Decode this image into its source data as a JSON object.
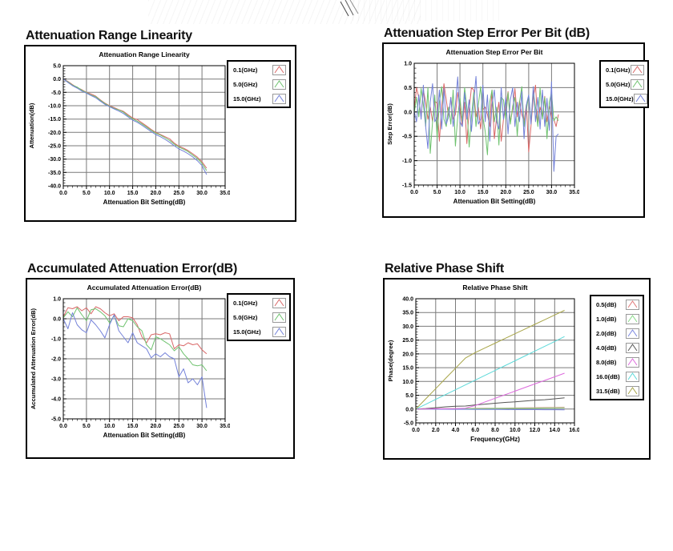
{
  "colors": {
    "grid": "#7a7a7a",
    "axis": "#000000",
    "plot_bg": "#ffffff",
    "frame": "#000000"
  },
  "panels": [
    {
      "header": "Attenuation Range Linearity"
    },
    {
      "header": "Attenuation Step Error Per Bit (dB)"
    },
    {
      "header": "Accumulated Attenuation Error(dB)"
    },
    {
      "header": "Relative Phase Shift"
    }
  ],
  "chart_data": [
    {
      "type": "line",
      "title": "Attenuation Range Linearity",
      "xlabel": "Attenuation Bit Setting(dB)",
      "ylabel": "Attenuation(dB)",
      "xmin": 0,
      "xmax": 35,
      "ymin": -40,
      "ymax": 5,
      "xticks": [
        "0.0",
        "5.0",
        "10.0",
        "15.0",
        "20.0",
        "25.0",
        "30.0",
        "35.0"
      ],
      "yticks": [
        "5.0",
        "0.0",
        "-5.0",
        "-10.0",
        "-15.0",
        "-20.0",
        "-25.0",
        "-30.0",
        "-35.0",
        "-40.0"
      ],
      "grid": true,
      "legend_position": "right",
      "x0": 0,
      "dx": 1,
      "series": [
        {
          "name": "0.1(GHz)",
          "color": "#d96868",
          "y": [
            0,
            -0.9,
            -2.1,
            -3.2,
            -4.0,
            -5.0,
            -5.6,
            -6.4,
            -7.8,
            -9.0,
            -10.0,
            -10.7,
            -11.5,
            -12.1,
            -13.4,
            -14.6,
            -15.2,
            -16.4,
            -17.6,
            -18.9,
            -20.0,
            -20.8,
            -21.6,
            -22.4,
            -24.0,
            -25.2,
            -25.9,
            -26.8,
            -28.0,
            -29.3,
            -31.0,
            -33.4
          ]
        },
        {
          "name": "5.0(GHz)",
          "color": "#6ec26e",
          "y": [
            0,
            -1.1,
            -2.3,
            -3.0,
            -4.2,
            -5.1,
            -6.0,
            -6.6,
            -8.0,
            -9.2,
            -10.2,
            -11.0,
            -11.6,
            -12.4,
            -13.8,
            -14.9,
            -15.8,
            -16.8,
            -18.0,
            -19.2,
            -20.3,
            -21.0,
            -22.0,
            -23.0,
            -24.4,
            -25.5,
            -26.3,
            -27.2,
            -28.5,
            -29.8,
            -31.6,
            -34.3
          ]
        },
        {
          "name": "15.0(GHz)",
          "color": "#7280d8",
          "y": [
            0,
            -1.3,
            -2.5,
            -3.4,
            -4.5,
            -5.3,
            -6.2,
            -7.0,
            -8.3,
            -9.5,
            -10.4,
            -11.2,
            -12.0,
            -12.9,
            -14.2,
            -15.4,
            -16.2,
            -17.3,
            -18.5,
            -19.7,
            -20.8,
            -21.6,
            -22.6,
            -23.7,
            -25.0,
            -26.2,
            -27.0,
            -28.0,
            -29.2,
            -30.6,
            -32.4,
            -35.8
          ]
        }
      ]
    },
    {
      "type": "line",
      "title": "Attenuation Step Error Per Bit",
      "xlabel": "Attenuation Bit Setting(dB)",
      "ylabel": "Step Error(dB)",
      "xmin": 0,
      "xmax": 35,
      "ymin": -1.5,
      "ymax": 1.0,
      "xticks": [
        "0.0",
        "5.0",
        "10.0",
        "15.0",
        "20.0",
        "25.0",
        "30.0",
        "35.0"
      ],
      "yticks": [
        "1.0",
        "0.5",
        "0.0",
        "-0.5",
        "-1.0",
        "-1.5"
      ],
      "grid": true,
      "legend_position": "right",
      "x0": 0,
      "dx": 0.5,
      "series": [
        {
          "name": "0.1(GHz)",
          "color": "#d96868",
          "y": [
            0.05,
            0.5,
            0.3,
            -0.1,
            0.45,
            0.2,
            -0.15,
            0.1,
            -0.2,
            0.22,
            0.18,
            -0.6,
            0.1,
            0.58,
            0.25,
            -0.1,
            0.3,
            -0.15,
            -0.05,
            0.4,
            0.1,
            -0.3,
            0.2,
            -0.65,
            0.05,
            0.5,
            0.45,
            -0.1,
            0.1,
            -0.35,
            0.05,
            0.1,
            -0.05,
            -0.3,
            0.45,
            -0.55,
            -0.1,
            0.2,
            -0.6,
            -0.15,
            0.1,
            0.42,
            -0.2,
            0.05,
            0.48,
            -0.1,
            0.22,
            -0.05,
            -0.2,
            0.15,
            -0.82,
            -0.3,
            0.3,
            0.55,
            -0.25,
            0.1,
            -0.1,
            0.32,
            -0.2,
            0.12,
            -0.1,
            -0.15,
            -0.3,
            -0.05
          ]
        },
        {
          "name": "5.0(GHz)",
          "color": "#6ec26e",
          "y": [
            -0.02,
            0.3,
            -0.1,
            0.48,
            0.15,
            -0.3,
            0.5,
            -0.85,
            -0.2,
            0.35,
            -0.55,
            0.2,
            0.52,
            -0.15,
            -0.3,
            0.1,
            -0.25,
            0.45,
            -0.7,
            -0.1,
            0.3,
            -0.2,
            0.5,
            0.1,
            -0.72,
            -0.1,
            0.4,
            -0.3,
            0.15,
            0.52,
            -0.1,
            -0.4,
            -0.88,
            0.2,
            0.45,
            -0.2,
            0.1,
            -0.68,
            0.3,
            0.25,
            -0.15,
            0.4,
            -0.25,
            0.12,
            0.3,
            -0.5,
            0.2,
            0.52,
            -0.3,
            0.05,
            0.35,
            -0.2,
            0.42,
            0.1,
            -0.3,
            0.5,
            -0.15,
            0.3,
            -0.55,
            0.2,
            0.4,
            -0.18,
            -0.1,
            -0.18
          ]
        },
        {
          "name": "15.0(GHz)",
          "color": "#7280d8",
          "y": [
            0.02,
            -0.2,
            0.35,
            -0.15,
            0.55,
            -0.3,
            -0.75,
            0.2,
            0.58,
            -0.2,
            -0.1,
            0.45,
            -0.35,
            0.48,
            -0.25,
            -0.1,
            0.3,
            -0.3,
            0.15,
            0.72,
            -0.2,
            -0.3,
            0.4,
            -0.15,
            0.25,
            -0.4,
            0.2,
            0.73,
            -0.25,
            -0.15,
            0.55,
            -0.2,
            0.35,
            -0.6,
            0.15,
            0.45,
            -0.2,
            -0.35,
            0.5,
            -0.15,
            0.3,
            -0.45,
            0.25,
            0.5,
            -0.3,
            0.2,
            -0.2,
            0.42,
            -0.55,
            0.15,
            0.35,
            -0.25,
            0.52,
            -0.2,
            0.3,
            -0.35,
            0.45,
            -0.3,
            0.28,
            -0.38,
            0.62,
            -1.22,
            -0.5,
            -0.45
          ]
        }
      ]
    },
    {
      "type": "line",
      "title": "Accumulated Attenuation Error(dB)",
      "xlabel": "Attenuation Bit Setting(dB)",
      "ylabel": "Accumulated Attenuation Error(dB)",
      "xmin": 0,
      "xmax": 35,
      "ymin": -5,
      "ymax": 1,
      "xticks": [
        "0.0",
        "5.0",
        "10.0",
        "15.0",
        "20.0",
        "25.0",
        "30.0",
        "35.0"
      ],
      "yticks": [
        "1.0",
        "0.0",
        "-1.0",
        "-2.0",
        "-3.0",
        "-4.0",
        "-5.0"
      ],
      "grid": true,
      "legend_position": "right",
      "x0": 0,
      "dx": 1,
      "series": [
        {
          "name": "0.1(GHz)",
          "color": "#d96868",
          "y": [
            0.1,
            0.55,
            0.5,
            0.6,
            0.4,
            0.55,
            0.25,
            0.6,
            0.5,
            0.3,
            0.15,
            0.25,
            -0.1,
            0.1,
            0.1,
            0.05,
            -0.3,
            -0.9,
            -1.2,
            -0.8,
            -0.75,
            -0.8,
            -0.7,
            -0.75,
            -1.5,
            -1.3,
            -1.35,
            -1.2,
            -1.3,
            -1.25,
            -1.55,
            -1.75
          ]
        },
        {
          "name": "5.0(GHz)",
          "color": "#6ec26e",
          "y": [
            0.05,
            0.35,
            0.1,
            0.55,
            0.2,
            -0.1,
            0.45,
            0.5,
            0.35,
            0.15,
            -0.2,
            0.15,
            -0.35,
            -0.4,
            0.0,
            -0.1,
            -0.4,
            -0.6,
            -1.3,
            -1.55,
            -0.9,
            -1.0,
            -1.15,
            -1.3,
            -1.6,
            -1.4,
            -1.75,
            -2.0,
            -2.3,
            -2.35,
            -2.3,
            -2.6
          ]
        },
        {
          "name": "15.0(GHz)",
          "color": "#7280d8",
          "y": [
            0.0,
            -0.5,
            0.3,
            -0.3,
            -0.55,
            -0.7,
            -0.05,
            -0.3,
            -0.6,
            -0.95,
            -0.3,
            0.2,
            -0.6,
            -0.9,
            -1.2,
            -0.7,
            -1.2,
            -1.35,
            -1.5,
            -1.95,
            -1.75,
            -1.9,
            -1.7,
            -1.9,
            -2.0,
            -2.9,
            -2.5,
            -3.2,
            -3.0,
            -3.3,
            -2.9,
            -4.45
          ]
        }
      ]
    },
    {
      "type": "line",
      "title": "Relative Phase Shift",
      "xlabel": "Frequency(GHz)",
      "ylabel": "Phase(degree)",
      "xmin": 0,
      "xmax": 16,
      "ymin": -5,
      "ymax": 40,
      "xticks": [
        "0.0",
        "2.0",
        "4.0",
        "6.0",
        "8.0",
        "10.0",
        "12.0",
        "14.0",
        "16.0"
      ],
      "yticks": [
        "40.0",
        "35.0",
        "30.0",
        "25.0",
        "20.0",
        "15.0",
        "10.0",
        "5.0",
        "0.0",
        "-5.0"
      ],
      "grid": true,
      "legend_position": "right",
      "x0": 0,
      "dx": 1,
      "series": [
        {
          "name": "0.5(dB)",
          "color": "#e07a7a",
          "y": [
            0,
            0.05,
            0.1,
            0.1,
            0.15,
            0.2,
            0.25,
            0.3,
            0.3,
            0.35,
            0.4,
            0.45,
            0.5,
            0.55,
            0.6,
            0.65
          ]
        },
        {
          "name": "1.0(dB)",
          "color": "#86d986",
          "y": [
            0,
            0.02,
            0.05,
            0.1,
            0.1,
            0.15,
            0.15,
            0.2,
            0.25,
            0.25,
            0.3,
            0.3,
            0.35,
            0.4,
            0.45,
            0.5
          ]
        },
        {
          "name": "2.0(dB)",
          "color": "#7b87e0",
          "y": [
            0,
            -0.02,
            -0.05,
            -0.05,
            -0.1,
            -0.1,
            -0.12,
            -0.15,
            -0.15,
            -0.18,
            -0.2,
            -0.2,
            -0.22,
            -0.25,
            -0.25,
            -0.3
          ]
        },
        {
          "name": "4.0(dB)",
          "color": "#555555",
          "y": [
            0,
            0.2,
            0.5,
            0.8,
            1.0,
            1.1,
            1.5,
            1.8,
            2.1,
            2.4,
            2.6,
            2.9,
            3.2,
            3.4,
            3.7,
            4.1
          ]
        },
        {
          "name": "8.0(dB)",
          "color": "#dd6add",
          "y": [
            0,
            0.05,
            0.1,
            0.1,
            0.15,
            0.3,
            1.3,
            2.6,
            3.9,
            5.2,
            6.5,
            7.8,
            9.1,
            10.4,
            11.7,
            13.0
          ]
        },
        {
          "name": "16.0(dB)",
          "color": "#5cd9d9",
          "y": [
            0,
            1.75,
            3.5,
            5.25,
            7.0,
            8.75,
            10.5,
            12.25,
            14.0,
            15.75,
            17.5,
            19.25,
            21.0,
            22.75,
            24.5,
            26.3
          ]
        },
        {
          "name": "31.5(dB)",
          "color": "#a8a548",
          "y": [
            0,
            3.7,
            7.4,
            11.1,
            14.8,
            18.5,
            20.5,
            22.2,
            23.9,
            25.6,
            27.3,
            29.0,
            30.7,
            32.4,
            34.1,
            35.8
          ]
        }
      ]
    }
  ]
}
